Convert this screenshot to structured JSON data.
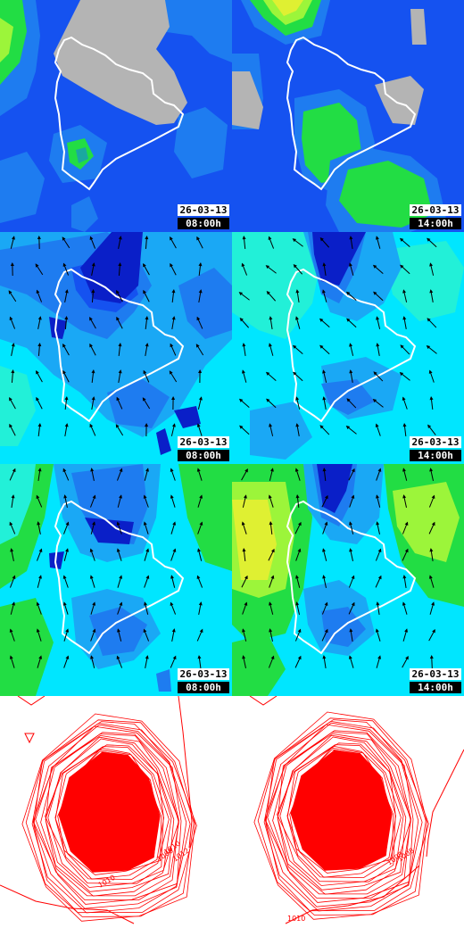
{
  "colors": {
    "deep_blue": "#0a1fc8",
    "blue": "#1552f0",
    "mid_blue": "#1e7cf0",
    "sky": "#1aa8f5",
    "cyan": "#00e6ff",
    "aqua": "#22f0d8",
    "green": "#22dd44",
    "lime": "#9cf53a",
    "yellow_green": "#dff032",
    "land_mask": "#b4b4b4",
    "coast": "#ffffff",
    "arrow": "#000000",
    "isobar": "#ff0000"
  },
  "panels": [
    {
      "id": "row1-left",
      "date": "26-03-13",
      "time": "08:00h",
      "kind": "field"
    },
    {
      "id": "row1-right",
      "date": "26-03-13",
      "time": "14:00h",
      "kind": "field"
    },
    {
      "id": "row2-left",
      "date": "26-03-13",
      "time": "08:00h",
      "kind": "wind"
    },
    {
      "id": "row2-right",
      "date": "26-03-13",
      "time": "14:00h",
      "kind": "wind"
    },
    {
      "id": "row3-left",
      "date": "26-03-13",
      "time": "08:00h",
      "kind": "wind"
    },
    {
      "id": "row3-right",
      "date": "26-03-13",
      "time": "14:00h",
      "kind": "wind"
    },
    {
      "id": "row4-left",
      "kind": "pressure"
    },
    {
      "id": "row4-right",
      "kind": "pressure"
    }
  ],
  "pressure_labels": {
    "left": [
      "1008",
      "1010",
      "1012",
      "1010"
    ],
    "right": [
      "1008",
      "1008",
      "1010"
    ]
  }
}
